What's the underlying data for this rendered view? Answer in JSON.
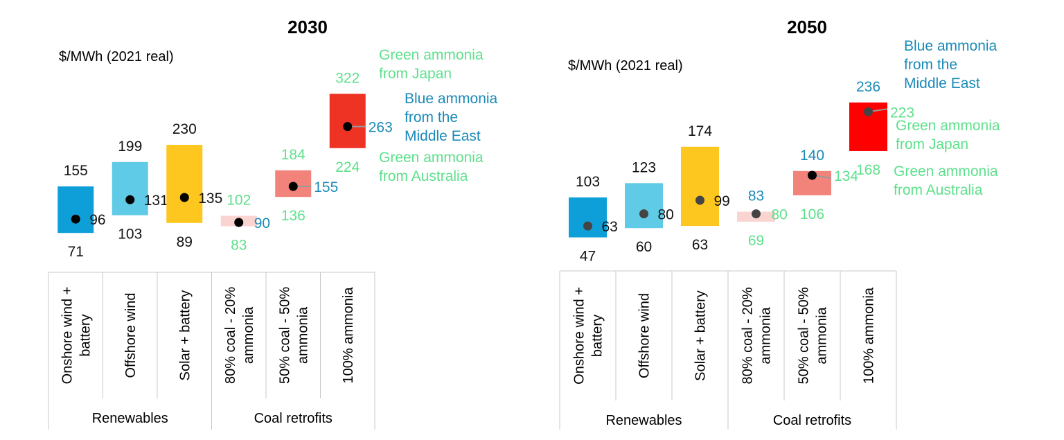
{
  "colors": {
    "green_text": "#5ee08c",
    "blue_text": "#1a8ab8",
    "black_text": "#111111",
    "grid": "#c8c8c8"
  },
  "chart_data": [
    {
      "type": "range-bar",
      "title": "2030",
      "ylabel": "$/MWh (2021 real)",
      "categories": [
        "Onshore wind + battery",
        "Offshore wind",
        "Solar + battery",
        "80% coal - 20% ammonia",
        "50% coal - 50% ammonia",
        "100% ammonia"
      ],
      "category_lines": [
        [
          "Onshore wind +",
          "battery"
        ],
        [
          "Offshore wind"
        ],
        [
          "Solar + battery"
        ],
        [
          "80% coal - 20%",
          "ammonia"
        ],
        [
          "50% coal - 50%",
          "ammonia"
        ],
        [
          "100% ammonia"
        ]
      ],
      "groups": [
        {
          "label": "Renewables",
          "span": 3
        },
        {
          "label": "Coal retrofits",
          "span": 3
        }
      ],
      "bars": [
        {
          "low": 71,
          "high": 155,
          "mid": 96,
          "color": "#0f9fd8",
          "low_color": "black",
          "high_color": "black",
          "mid_color": "black"
        },
        {
          "low": 103,
          "high": 199,
          "mid": 131,
          "color": "#60cbe6",
          "low_color": "black",
          "high_color": "black",
          "mid_color": "black"
        },
        {
          "low": 89,
          "high": 230,
          "mid": 135,
          "color": "#fec720",
          "low_color": "black",
          "high_color": "black",
          "mid_color": "black"
        },
        {
          "low": 83,
          "high": 102,
          "mid": 90,
          "color": "#fad4d1",
          "low_color": "green",
          "high_color": "green",
          "mid_color": "blue"
        },
        {
          "low": 136,
          "high": 184,
          "mid": 155,
          "color": "#f2837b",
          "low_color": "green",
          "high_color": "green",
          "mid_color": "blue"
        },
        {
          "low": 224,
          "high": 322,
          "mid": 263,
          "color": "#ee3325",
          "low_color": "green",
          "high_color": "green",
          "mid_color": "blue"
        }
      ],
      "annotations": [
        {
          "lines": [
            "Green ammonia",
            "from Japan"
          ],
          "color": "green"
        },
        {
          "lines": [
            "Blue ammonia",
            "from the",
            "Middle East"
          ],
          "color": "blue"
        },
        {
          "lines": [
            "Green ammonia",
            "from Australia"
          ],
          "color": "green"
        }
      ]
    },
    {
      "type": "range-bar",
      "title": "2050",
      "ylabel": "$/MWh (2021 real)",
      "categories": [
        "Onshore wind + battery",
        "Offshore wind",
        "Solar + battery",
        "80% coal - 20% ammonia",
        "50% coal - 50% ammonia",
        "100% ammonia"
      ],
      "category_lines": [
        [
          "Onshore wind +",
          "battery"
        ],
        [
          "Offshore wind"
        ],
        [
          "Solar + battery"
        ],
        [
          "80% coal - 20%",
          "ammonia"
        ],
        [
          "50% coal - 50%",
          "ammonia"
        ],
        [
          "100% ammonia"
        ]
      ],
      "groups": [
        {
          "label": "Renewables",
          "span": 3
        },
        {
          "label": "Coal retrofits",
          "span": 3
        }
      ],
      "bars": [
        {
          "low": 47,
          "high": 103,
          "mid": 63,
          "color": "#0f9fd8",
          "low_color": "black",
          "high_color": "black",
          "mid_color": "black"
        },
        {
          "low": 60,
          "high": 123,
          "mid": 80,
          "color": "#60cbe6",
          "low_color": "black",
          "high_color": "black",
          "mid_color": "black"
        },
        {
          "low": 63,
          "high": 174,
          "mid": 99,
          "color": "#fec720",
          "low_color": "black",
          "high_color": "black",
          "mid_color": "black"
        },
        {
          "low": 69,
          "high": 83,
          "mid": 80,
          "color": "#fad4d1",
          "low_color": "green",
          "high_color": "blue",
          "mid_color": "green"
        },
        {
          "low": 106,
          "high": 140,
          "mid": 134,
          "color": "#f2837b",
          "low_color": "green",
          "high_color": "blue",
          "mid_color": "green"
        },
        {
          "low": 168,
          "high": 236,
          "mid": 223,
          "color": "#ff0000",
          "low_color": "green",
          "high_color": "blue",
          "mid_color": "green"
        }
      ],
      "annotations": [
        {
          "lines": [
            "Blue ammonia",
            "from the",
            "Middle East"
          ],
          "color": "blue"
        },
        {
          "lines": [
            "Green ammonia",
            "from Japan"
          ],
          "color": "green"
        },
        {
          "lines": [
            "Green ammonia",
            "from Australia"
          ],
          "color": "green"
        }
      ]
    }
  ]
}
